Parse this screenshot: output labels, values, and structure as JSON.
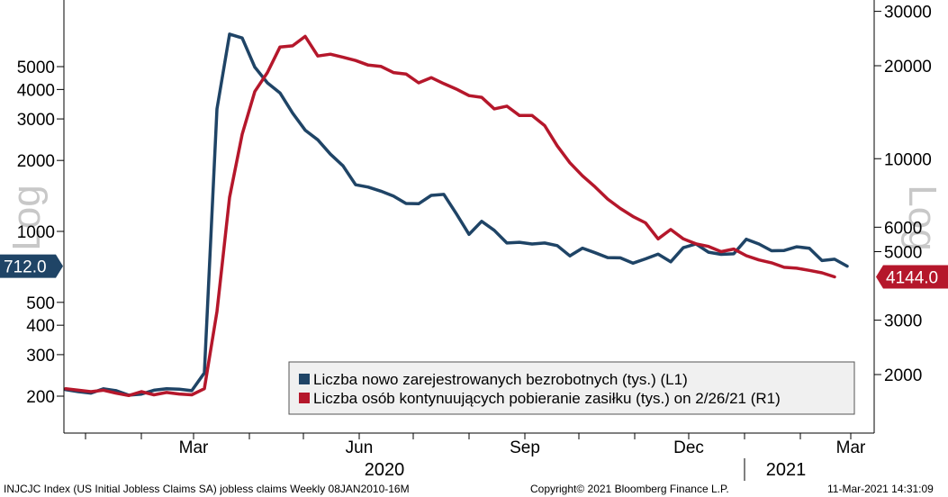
{
  "chart_data": {
    "type": "line",
    "left_axis_title": "Log",
    "right_axis_title": "Log",
    "left_ticks": [
      200,
      300,
      400,
      500,
      1000,
      2000,
      3000,
      4000,
      5000
    ],
    "left_tick_labels": [
      "200",
      "300",
      "400",
      "500",
      "1000",
      "2000",
      "3000",
      "4000",
      "5000"
    ],
    "right_ticks": [
      2000,
      3000,
      5000,
      6000,
      10000,
      20000,
      30000
    ],
    "right_tick_labels": [
      "2000",
      "3000",
      "5000",
      "6000",
      "10000",
      "20000",
      "30000"
    ],
    "x_month_labels": [
      {
        "date": "2020-03-01",
        "label": "Mar"
      },
      {
        "date": "2020-06-01",
        "label": "Jun"
      },
      {
        "date": "2020-09-01",
        "label": "Sep"
      },
      {
        "date": "2020-12-01",
        "label": "Dec"
      },
      {
        "date": "2021-03-01",
        "label": "Mar"
      }
    ],
    "x_year_labels": [
      {
        "date": "2020-06-15",
        "label": "2020"
      },
      {
        "date": "2021-01-24",
        "label": "2021"
      }
    ],
    "x_range": [
      "2019-12-20",
      "2021-03-14"
    ],
    "legend_position": "bottom-right",
    "series": [
      {
        "name": "Liczba nowo zarejestrowanych bezrobotnych (tys.) (L1)",
        "axis": "left",
        "color": "#1f4466",
        "points": [
          [
            "2019-12-21",
            213
          ],
          [
            "2019-12-28",
            209
          ],
          [
            "2020-01-04",
            206
          ],
          [
            "2020-01-11",
            215
          ],
          [
            "2020-01-18",
            211
          ],
          [
            "2020-01-25",
            202
          ],
          [
            "2020-02-01",
            204
          ],
          [
            "2020-02-08",
            212
          ],
          [
            "2020-02-15",
            215
          ],
          [
            "2020-02-22",
            214
          ],
          [
            "2020-02-29",
            211
          ],
          [
            "2020-03-07",
            251
          ],
          [
            "2020-03-14",
            3307
          ],
          [
            "2020-03-21",
            6867
          ],
          [
            "2020-03-28",
            6615
          ],
          [
            "2020-04-04",
            4976
          ],
          [
            "2020-04-11",
            4267
          ],
          [
            "2020-04-18",
            3867
          ],
          [
            "2020-04-25",
            3176
          ],
          [
            "2020-05-02",
            2687
          ],
          [
            "2020-05-09",
            2446
          ],
          [
            "2020-05-16",
            2126
          ],
          [
            "2020-05-23",
            1897
          ],
          [
            "2020-05-30",
            1577
          ],
          [
            "2020-06-06",
            1542
          ],
          [
            "2020-06-13",
            1482
          ],
          [
            "2020-06-20",
            1413
          ],
          [
            "2020-06-27",
            1314
          ],
          [
            "2020-07-04",
            1310
          ],
          [
            "2020-07-11",
            1422
          ],
          [
            "2020-07-18",
            1435
          ],
          [
            "2020-07-25",
            1186
          ],
          [
            "2020-08-01",
            971
          ],
          [
            "2020-08-08",
            1104
          ],
          [
            "2020-08-15",
            1011
          ],
          [
            "2020-08-22",
            893
          ],
          [
            "2020-08-29",
            899
          ],
          [
            "2020-09-05",
            884
          ],
          [
            "2020-09-12",
            893
          ],
          [
            "2020-09-19",
            870
          ],
          [
            "2020-09-26",
            787
          ],
          [
            "2020-10-03",
            849
          ],
          [
            "2020-10-10",
            812
          ],
          [
            "2020-10-17",
            774
          ],
          [
            "2020-10-24",
            772
          ],
          [
            "2020-10-31",
            733
          ],
          [
            "2020-11-07",
            765
          ],
          [
            "2020-11-14",
            801
          ],
          [
            "2020-11-21",
            743
          ],
          [
            "2020-11-28",
            853
          ],
          [
            "2020-12-05",
            885
          ],
          [
            "2020-12-12",
            816
          ],
          [
            "2020-12-19",
            799
          ],
          [
            "2020-12-26",
            803
          ],
          [
            "2021-01-02",
            926
          ],
          [
            "2021-01-09",
            884
          ],
          [
            "2021-01-16",
            828
          ],
          [
            "2021-01-23",
            830
          ],
          [
            "2021-01-30",
            860
          ],
          [
            "2021-02-06",
            848
          ],
          [
            "2021-02-13",
            752
          ],
          [
            "2021-02-20",
            762
          ],
          [
            "2021-02-27",
            712
          ]
        ]
      },
      {
        "name": "Liczba osób kontynuujących pobieranie zasiłku (tys.) on 2/26/21 (R1)",
        "axis": "right",
        "color": "#b5172b",
        "points": [
          [
            "2019-12-21",
            1800
          ],
          [
            "2019-12-28",
            1780
          ],
          [
            "2020-01-04",
            1760
          ],
          [
            "2020-01-11",
            1780
          ],
          [
            "2020-01-18",
            1740
          ],
          [
            "2020-01-25",
            1710
          ],
          [
            "2020-02-01",
            1760
          ],
          [
            "2020-02-08",
            1720
          ],
          [
            "2020-02-15",
            1750
          ],
          [
            "2020-02-22",
            1730
          ],
          [
            "2020-02-29",
            1720
          ],
          [
            "2020-03-07",
            1800
          ],
          [
            "2020-03-14",
            3200
          ],
          [
            "2020-03-21",
            7500
          ],
          [
            "2020-03-28",
            12000
          ],
          [
            "2020-04-04",
            16500
          ],
          [
            "2020-04-11",
            19000
          ],
          [
            "2020-04-18",
            23000
          ],
          [
            "2020-04-25",
            23200
          ],
          [
            "2020-05-02",
            24900
          ],
          [
            "2020-05-09",
            21500
          ],
          [
            "2020-05-16",
            21800
          ],
          [
            "2020-05-23",
            21300
          ],
          [
            "2020-05-30",
            20800
          ],
          [
            "2020-06-06",
            20100
          ],
          [
            "2020-06-13",
            19900
          ],
          [
            "2020-06-20",
            19000
          ],
          [
            "2020-06-27",
            18800
          ],
          [
            "2020-07-04",
            17600
          ],
          [
            "2020-07-11",
            18300
          ],
          [
            "2020-07-18",
            17500
          ],
          [
            "2020-07-25",
            16800
          ],
          [
            "2020-08-01",
            16000
          ],
          [
            "2020-08-08",
            15800
          ],
          [
            "2020-08-15",
            14500
          ],
          [
            "2020-08-22",
            14800
          ],
          [
            "2020-08-29",
            13800
          ],
          [
            "2020-09-05",
            13800
          ],
          [
            "2020-09-12",
            12800
          ],
          [
            "2020-09-19",
            11000
          ],
          [
            "2020-09-26",
            9700
          ],
          [
            "2020-10-03",
            8800
          ],
          [
            "2020-10-10",
            8100
          ],
          [
            "2020-10-17",
            7400
          ],
          [
            "2020-10-24",
            6900
          ],
          [
            "2020-10-31",
            6500
          ],
          [
            "2020-11-07",
            6200
          ],
          [
            "2020-11-14",
            5500
          ],
          [
            "2020-11-21",
            5900
          ],
          [
            "2020-11-28",
            5500
          ],
          [
            "2020-12-05",
            5300
          ],
          [
            "2020-12-12",
            5200
          ],
          [
            "2020-12-19",
            5000
          ],
          [
            "2020-12-26",
            5100
          ],
          [
            "2021-01-02",
            4850
          ],
          [
            "2021-01-09",
            4700
          ],
          [
            "2021-01-16",
            4600
          ],
          [
            "2021-01-23",
            4450
          ],
          [
            "2021-01-30",
            4420
          ],
          [
            "2021-02-06",
            4350
          ],
          [
            "2021-02-13",
            4270
          ],
          [
            "2021-02-20",
            4144
          ]
        ]
      }
    ],
    "last_value_badges": [
      {
        "series": 0,
        "label": "712.0",
        "side": "left",
        "color": "#1f4466"
      },
      {
        "series": 1,
        "label": "4144.0",
        "side": "right",
        "color": "#b5172b"
      }
    ]
  },
  "footer": {
    "left": "INJCJC Index (US Initial Jobless Claims SA) jobless claims  Weekly 08JAN2010-16M",
    "center": "Copyright© 2021 Bloomberg Finance L.P.",
    "right": "11-Mar-2021 14:31:09"
  }
}
